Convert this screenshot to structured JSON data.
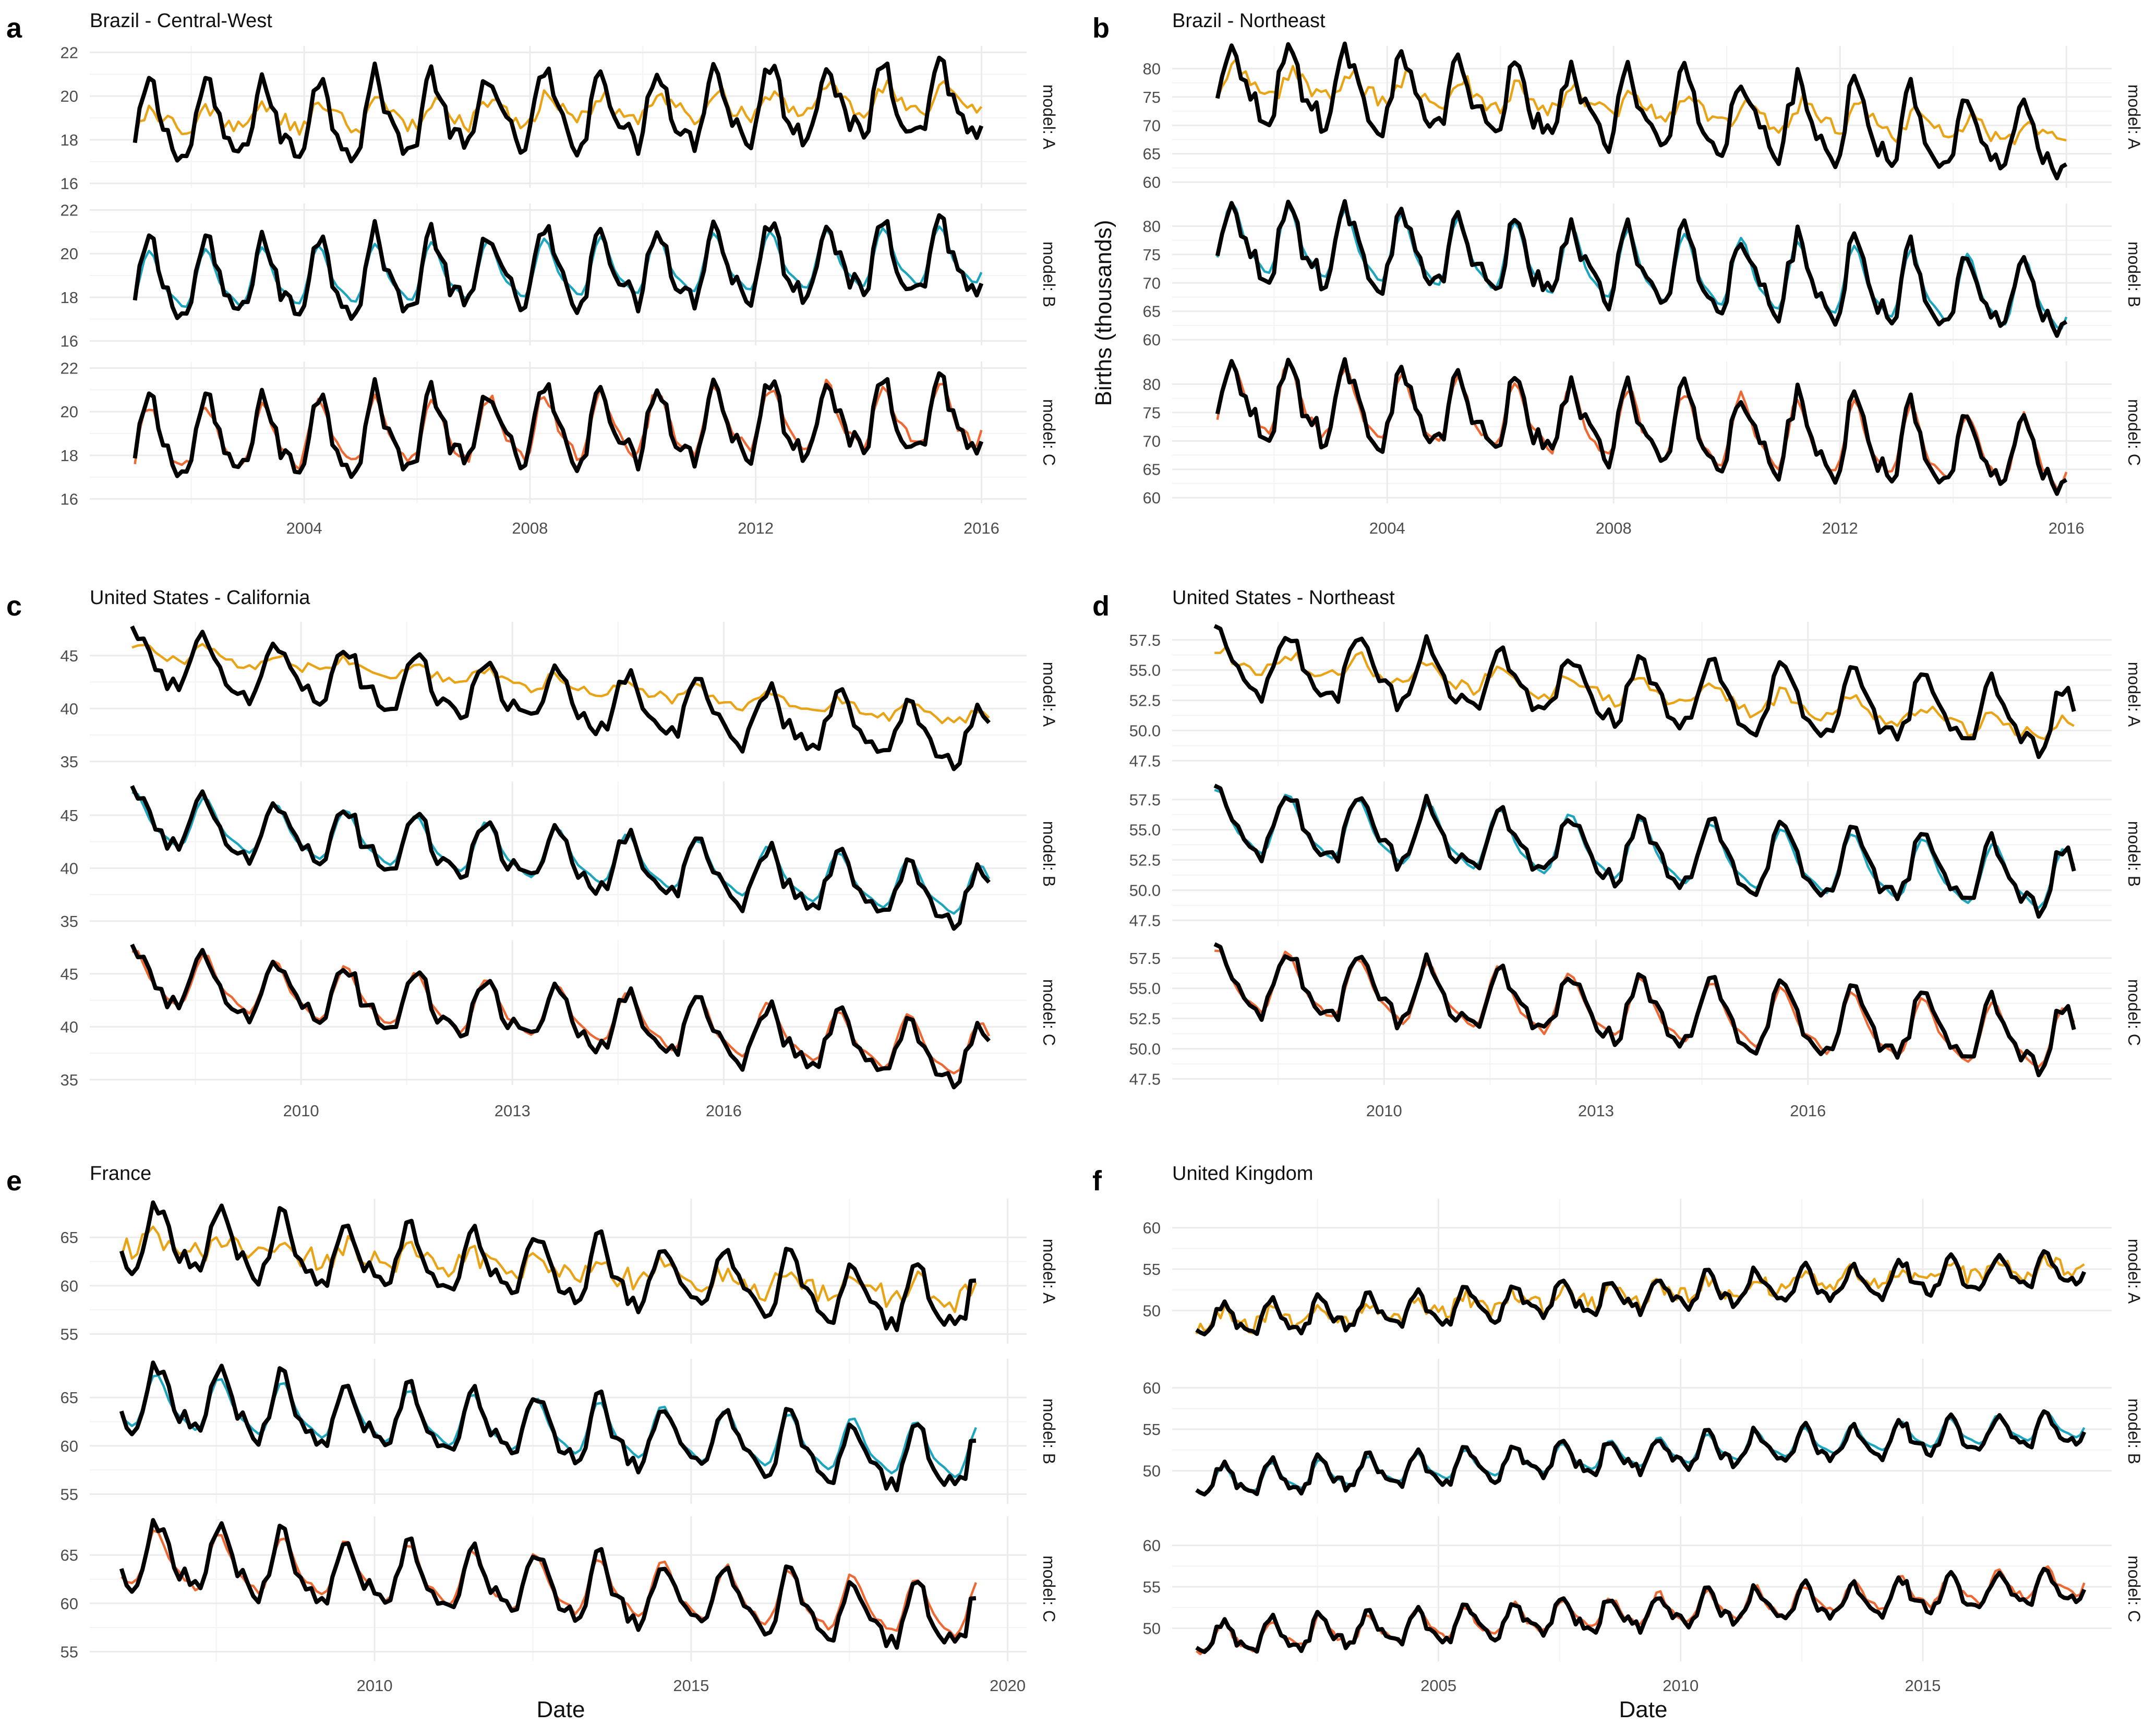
{
  "figure": {
    "x_title": "Date",
    "y_title": "Births (thousands)",
    "colors": {
      "observed": "#000000",
      "model_A": "#E8A317",
      "model_B": "#1FA6BF",
      "model_C": "#EE6A35",
      "grid": "#ebebeb"
    }
  },
  "chart_data": [
    {
      "panel": "a",
      "type": "line",
      "title": "Brazil - Central-West",
      "xlabel": "",
      "ylabel": "Births (thousands)",
      "x_range": [
        2001.0,
        2016.0
      ],
      "xlim": [
        2000.2,
        2016.8
      ],
      "x_ticks": [
        2004,
        2008,
        2012,
        2016
      ],
      "facets": [
        "model: A",
        "model: B",
        "model: C"
      ],
      "ylim": [
        15.8,
        22.3
      ],
      "y_ticks": [
        16,
        18,
        20,
        22
      ],
      "observed": {
        "trend_start": 18.6,
        "trend_end": 19.8,
        "amplitude": 1.6,
        "peak_month": 3.5
      },
      "model_A": {
        "trend_start": 18.8,
        "trend_end": 19.9,
        "amplitude": 0.5,
        "peak_month": 4.0,
        "noise": 0.4
      },
      "model_B": {
        "trend_start": 18.6,
        "trend_end": 19.8,
        "amplitude": 1.2,
        "peak_month": 3.5,
        "noise": 0.0
      },
      "model_C": {
        "trend_start": 18.6,
        "trend_end": 19.8,
        "amplitude": 1.3,
        "peak_month": 3.5,
        "noise": 0.3
      }
    },
    {
      "panel": "b",
      "type": "line",
      "title": "Brazil - Northeast",
      "xlabel": "",
      "ylabel": "Births (thousands)",
      "x_range": [
        2001.0,
        2016.0
      ],
      "xlim": [
        2000.2,
        2016.8
      ],
      "x_ticks": [
        2004,
        2008,
        2012,
        2016
      ],
      "facets": [
        "model: A",
        "model: B",
        "model: C"
      ],
      "ylim": [
        59,
        84
      ],
      "y_ticks": [
        60,
        65,
        70,
        75,
        80
      ],
      "observed": {
        "trend_start": 77.5,
        "trend_end": 67.0,
        "amplitude": 6.0,
        "peak_month": 3.5
      },
      "model_A": {
        "trend_start": 78.0,
        "trend_end": 68.5,
        "amplitude": 2.0,
        "peak_month": 4.5,
        "noise": 1.5
      },
      "model_B": {
        "trend_start": 77.5,
        "trend_end": 67.0,
        "amplitude": 5.5,
        "peak_month": 3.5,
        "noise": 0.0
      },
      "model_C": {
        "trend_start": 77.5,
        "trend_end": 67.0,
        "amplitude": 5.5,
        "peak_month": 3.5,
        "noise": 0.8
      }
    },
    {
      "panel": "c",
      "type": "line",
      "title": "United States - California",
      "xlabel": "",
      "ylabel": "Births (thousands)",
      "x_range": [
        2007.6,
        2019.8
      ],
      "xlim": [
        2007.0,
        2020.3
      ],
      "x_ticks": [
        2010,
        2013,
        2016
      ],
      "facets": [
        "model: A",
        "model: B",
        "model: C"
      ],
      "ylim": [
        34.5,
        48.2
      ],
      "y_ticks": [
        35,
        40,
        45
      ],
      "observed": {
        "trend_start": 44.5,
        "trend_end": 37.0,
        "amplitude": 2.5,
        "peak_month": 8.0
      },
      "model_A": {
        "trend_start": 45.5,
        "trend_end": 39.0,
        "amplitude": 0.6,
        "peak_month": 8.0,
        "noise": 0.5
      },
      "model_B": {
        "trend_start": 44.5,
        "trend_end": 37.5,
        "amplitude": 2.2,
        "peak_month": 8.0,
        "noise": 0.0
      },
      "model_C": {
        "trend_start": 44.5,
        "trend_end": 37.5,
        "amplitude": 2.3,
        "peak_month": 8.0,
        "noise": 0.2
      }
    },
    {
      "panel": "d",
      "type": "line",
      "title": "United States - Northeast",
      "xlabel": "",
      "ylabel": "Births (thousands)",
      "x_range": [
        2007.6,
        2019.8
      ],
      "xlim": [
        2007.0,
        2020.3
      ],
      "x_ticks": [
        2010,
        2013,
        2016
      ],
      "facets": [
        "model: A",
        "model: B",
        "model: C"
      ],
      "ylim": [
        47.0,
        59.0
      ],
      "y_ticks": [
        47.5,
        50.0,
        52.5,
        55.0,
        57.5
      ],
      "tick_format": "1dp",
      "observed": {
        "trend_start": 55.5,
        "trend_end": 50.5,
        "amplitude": 2.4,
        "peak_month": 8.0
      },
      "model_A": {
        "trend_start": 56.0,
        "trend_end": 50.0,
        "amplitude": 0.8,
        "peak_month": 8.0,
        "noise": 0.6
      },
      "model_B": {
        "trend_start": 55.5,
        "trend_end": 50.5,
        "amplitude": 2.3,
        "peak_month": 8.0,
        "noise": 0.0
      },
      "model_C": {
        "trend_start": 55.5,
        "trend_end": 50.5,
        "amplitude": 2.3,
        "peak_month": 8.0,
        "noise": 0.2
      }
    },
    {
      "panel": "e",
      "type": "line",
      "title": "France",
      "xlabel": "Date",
      "ylabel": "Births (thousands)",
      "x_range": [
        2006.0,
        2019.5
      ],
      "xlim": [
        2005.5,
        2020.3
      ],
      "x_ticks": [
        2010,
        2015,
        2020
      ],
      "facets": [
        "model: A",
        "model: B",
        "model: C"
      ],
      "ylim": [
        54.0,
        69.0
      ],
      "y_ticks": [
        55,
        60,
        65
      ],
      "observed": {
        "trend_start": 65.0,
        "trend_end": 58.0,
        "amplitude": 3.0,
        "peak_month": 7.0
      },
      "model_A": {
        "trend_start": 64.5,
        "trend_end": 59.0,
        "amplitude": 0.8,
        "peak_month": 7.0,
        "noise": 1.2
      },
      "model_B": {
        "trend_start": 64.5,
        "trend_end": 59.0,
        "amplitude": 2.5,
        "peak_month": 7.0,
        "noise": 0.0
      },
      "model_C": {
        "trend_start": 64.5,
        "trend_end": 59.0,
        "amplitude": 2.6,
        "peak_month": 7.0,
        "noise": 0.3
      }
    },
    {
      "panel": "f",
      "type": "line",
      "title": "United Kingdom",
      "xlabel": "Date",
      "ylabel": "Births (thousands)",
      "x_range": [
        2000.0,
        2018.3
      ],
      "xlim": [
        1999.5,
        2018.9
      ],
      "x_ticks": [
        2005,
        2010,
        2015
      ],
      "facets": [
        "model: A",
        "model: B",
        "model: C"
      ],
      "ylim": [
        46.0,
        63.5
      ],
      "y_ticks": [
        50,
        55,
        60
      ],
      "observed": {
        "trend_start": 48.5,
        "trend_end": 55.0,
        "amplitude": 1.8,
        "peak_month": 7.0
      },
      "model_A": {
        "trend_start": 48.5,
        "trend_end": 55.5,
        "amplitude": 0.8,
        "peak_month": 7.0,
        "noise": 1.0
      },
      "model_B": {
        "trend_start": 48.5,
        "trend_end": 55.5,
        "amplitude": 1.5,
        "peak_month": 7.0,
        "noise": 0.0
      },
      "model_C": {
        "trend_start": 48.5,
        "trend_end": 55.5,
        "amplitude": 1.6,
        "peak_month": 7.0,
        "noise": 0.4
      }
    }
  ]
}
